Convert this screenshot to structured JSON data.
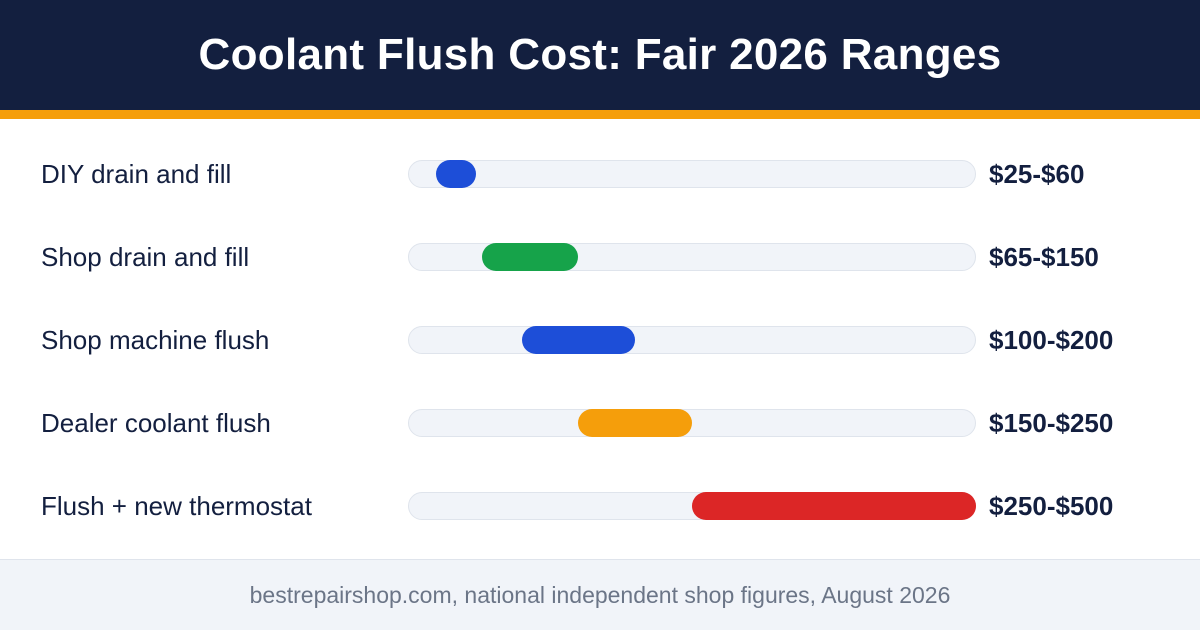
{
  "chart_data": {
    "type": "bar",
    "orientation": "horizontal-range",
    "title": "Coolant Flush Cost: Fair 2026 Ranges",
    "xlim": [
      0,
      500
    ],
    "grid": false,
    "categories": [
      "DIY drain and fill",
      "Shop drain and fill",
      "Shop machine flush",
      "Dealer coolant flush",
      "Flush + new thermostat"
    ],
    "ranges": [
      {
        "low": 25,
        "high": 60,
        "label": "$25-$60",
        "color": "#1d4ed8"
      },
      {
        "low": 65,
        "high": 150,
        "label": "$65-$150",
        "color": "#16a34a"
      },
      {
        "low": 100,
        "high": 200,
        "label": "$100-$200",
        "color": "#1d4ed8"
      },
      {
        "low": 150,
        "high": 250,
        "label": "$150-$250",
        "color": "#f59e0b"
      },
      {
        "low": 250,
        "high": 500,
        "label": "$250-$500",
        "color": "#dc2626"
      }
    ]
  },
  "footer": {
    "source": "bestrepairshop.com, national independent shop figures, August 2026"
  },
  "colors": {
    "header_bg": "#131f3f",
    "accent": "#f59e0b",
    "track": "#f1f4f9"
  }
}
